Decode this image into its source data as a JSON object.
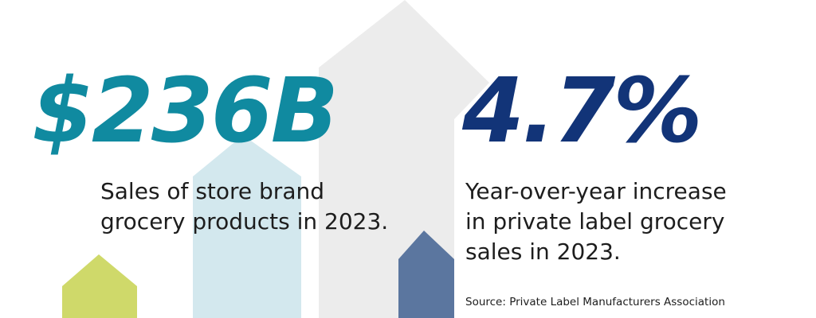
{
  "stats": {
    "left": {
      "value": "$236B",
      "caption": "Sales of store brand\ngrocery products in 2023."
    },
    "right": {
      "value": "4.7%",
      "caption": "Year-over-year increase\nin private label grocery\nsales in 2023."
    }
  },
  "source": "Source: Private Label Manufacturers Association",
  "colors": {
    "background": "#ffffff",
    "teal": "#108aa0",
    "navy": "#123478",
    "text": "#1d1d1d",
    "arrow_lime": "#cfd96a",
    "arrow_lightblue": "#d3e8ee",
    "arrow_gray": "#ececec",
    "arrow_slate": "#5b769f"
  },
  "decorations": [
    "lime-arrow-shape",
    "light-blue-arrow-shape",
    "gray-arrow-shape",
    "slate-arrow-shape"
  ]
}
